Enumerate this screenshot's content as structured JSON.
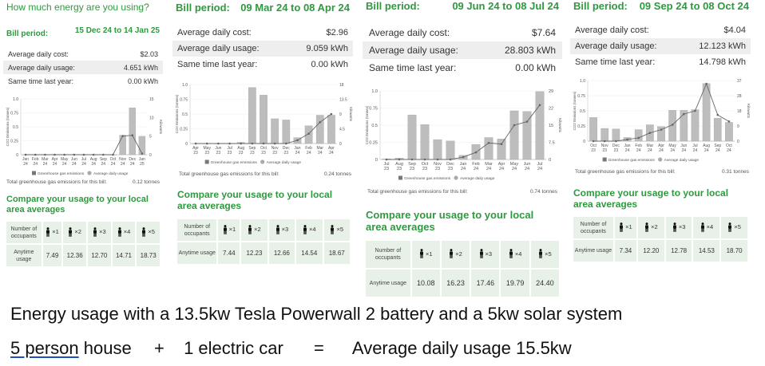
{
  "app_title": "How much energy are you using?",
  "colors": {
    "accent": "#2e9a3e",
    "bar": "#bdbdbd",
    "line": "#666666",
    "shade": "#eeeeee",
    "cell": "#e7f1e7"
  },
  "panels": [
    {
      "bill_label": "Bill period:",
      "bill_period": "15 Dec 24 to 14 Jan 25",
      "rows": [
        {
          "label": "Average daily cost:",
          "value": "$2.03"
        },
        {
          "label": "Average daily usage:",
          "value": "4.651 kWh"
        },
        {
          "label": "Same time last year:",
          "value": "0.00 kWh"
        }
      ],
      "total_label": "Total greenhouse gas emissions for this bill:",
      "total_value": "0.12 tonnes",
      "compare_title": "Compare your usage to your local area averages",
      "occupants_label": "Number of occupants",
      "usage_label": "Anytime usage",
      "occupants": [
        "×1",
        "×2",
        "×3",
        "×4",
        "×5"
      ],
      "averages": [
        "7.49",
        "12.36",
        "12.70",
        "14.71",
        "18.73"
      ]
    },
    {
      "bill_label": "Bill period:",
      "bill_period": "09 Mar 24 to 08 Apr 24",
      "rows": [
        {
          "label": "Average daily cost:",
          "value": "$2.96"
        },
        {
          "label": "Average daily usage:",
          "value": "9.059 kWh"
        },
        {
          "label": "Same time last year:",
          "value": "0.00 kWh"
        }
      ],
      "total_label": "Total greenhouse gas emissions for this bill:",
      "total_value": "0.24 tonnes",
      "compare_title": "Compare your usage to your local area averages",
      "occupants_label": "Number of occupants",
      "usage_label": "Anytime usage",
      "occupants": [
        "×1",
        "×2",
        "×3",
        "×4",
        "×5"
      ],
      "averages": [
        "7.44",
        "12.23",
        "12.66",
        "14.54",
        "18.67"
      ]
    },
    {
      "bill_label": "Bill period:",
      "bill_period": "09 Jun 24 to 08 Jul 24",
      "rows": [
        {
          "label": "Average daily cost:",
          "value": "$7.64"
        },
        {
          "label": "Average daily usage:",
          "value": "28.803 kWh"
        },
        {
          "label": "Same time last year:",
          "value": "0.00 kWh"
        }
      ],
      "total_label": "Total greenhouse gas emissions for this bill:",
      "total_value": "0.74 tonnes",
      "compare_title": "Compare your usage to your local area averages",
      "occupants_label": "Number of occupants",
      "usage_label": "Anytime usage",
      "occupants": [
        "×1",
        "×2",
        "×3",
        "×4",
        "×5"
      ],
      "averages": [
        "10.08",
        "16.23",
        "17.46",
        "19.79",
        "24.40"
      ]
    },
    {
      "bill_label": "Bill period:",
      "bill_period": "09 Sep 24 to 08 Oct 24",
      "rows": [
        {
          "label": "Average daily cost:",
          "value": "$4.04"
        },
        {
          "label": "Average daily usage:",
          "value": "12.123 kWh"
        },
        {
          "label": "Same time last year:",
          "value": "14.798 kWh"
        }
      ],
      "total_label": "Total greenhouse gas emissions for this bill:",
      "total_value": "0.31 tonnes",
      "compare_title": "Compare your usage to your local area averages",
      "occupants_label": "Number of occupants",
      "usage_label": "Anytime usage",
      "occupants": [
        "×1",
        "×2",
        "×3",
        "×4",
        "×5"
      ],
      "averages": [
        "7.34",
        "12.20",
        "12.78",
        "14.53",
        "18.70"
      ]
    }
  ],
  "chart_data": [
    {
      "type": "bar",
      "title": "",
      "ylabel": "CO2 Emissions (tonnes)",
      "y2label": "Kilowatts",
      "ylim": [
        0,
        1.0
      ],
      "y_ticks": [
        "0",
        "0.25",
        "0.5",
        "0.75",
        "1.0"
      ],
      "y2lim": [
        0,
        15
      ],
      "y2_ticks": [
        "0",
        "5",
        "10",
        "15"
      ],
      "categories": [
        "Jan 24",
        "Feb 24",
        "Mar 24",
        "Apr 24",
        "May 24",
        "Jun 24",
        "Jul 24",
        "Aug 24",
        "Sep 24",
        "Oct 24",
        "Nov 24",
        "Dec 24",
        "Jan 25"
      ],
      "series": [
        {
          "name": "Greenhouse gas emissions",
          "kind": "bar",
          "axis": "left",
          "values": [
            0,
            0,
            0,
            0,
            0,
            0,
            0,
            0,
            0,
            0,
            0.35,
            0.84,
            0.33
          ]
        },
        {
          "name": "Average daily usage",
          "kind": "line",
          "axis": "right",
          "values": [
            0,
            0,
            0,
            0,
            0,
            0,
            0,
            0,
            0,
            0,
            5.0,
            5.2,
            0.3
          ]
        }
      ]
    },
    {
      "type": "bar",
      "title": "",
      "ylabel": "CO2 Emissions (tonnes)",
      "y2label": "Kilowatts",
      "ylim": [
        0,
        1.0
      ],
      "y_ticks": [
        "0",
        "0.25",
        "0.5",
        "0.75",
        "1.0"
      ],
      "y2lim": [
        0,
        18
      ],
      "y2_ticks": [
        "0",
        "4.5",
        "9",
        "13.5",
        "18"
      ],
      "categories": [
        "Apr 23",
        "May 23",
        "Jun 23",
        "Jul 23",
        "Aug 23",
        "Sep 23",
        "Oct 23",
        "Nov 23",
        "Dec 23",
        "Jan 24",
        "Feb 24",
        "Mar 24",
        "Apr 24"
      ],
      "series": [
        {
          "name": "Greenhouse gas emissions",
          "kind": "bar",
          "axis": "left",
          "values": [
            0,
            0,
            0,
            0,
            0.02,
            0.95,
            0.82,
            0.42,
            0.4,
            0.1,
            0.3,
            0.48,
            0.48
          ]
        },
        {
          "name": "Average daily usage",
          "kind": "line",
          "axis": "right",
          "values": [
            0,
            0,
            0,
            0,
            0,
            0,
            0,
            0,
            0,
            1.0,
            3.0,
            6.5,
            9.0
          ]
        }
      ]
    },
    {
      "type": "bar",
      "title": "",
      "ylabel": "CO2 Emissions (tonnes)",
      "y2label": "Kilowatts",
      "ylim": [
        0,
        1.0
      ],
      "y_ticks": [
        "0",
        "0.25",
        "0.5",
        "0.75",
        "1.0"
      ],
      "y2lim": [
        0,
        29
      ],
      "y2_ticks": [
        "0",
        "7.5",
        "15",
        "22",
        "29"
      ],
      "categories": [
        "Jul 23",
        "Aug 23",
        "Sep 23",
        "Oct 23",
        "Nov 23",
        "Dec 23",
        "Jan 24",
        "Feb 24",
        "Mar 24",
        "Apr 24",
        "May 24",
        "Jun 24",
        "Jul 24"
      ],
      "series": [
        {
          "name": "Greenhouse gas emissions",
          "kind": "bar",
          "axis": "left",
          "values": [
            0.01,
            0.02,
            0.65,
            0.51,
            0.29,
            0.27,
            0.06,
            0.22,
            0.32,
            0.3,
            0.71,
            0.7,
            0.99
          ]
        },
        {
          "name": "Average daily usage",
          "kind": "line",
          "axis": "right",
          "values": [
            0,
            0,
            0,
            0,
            0,
            0,
            1.0,
            3.0,
            7.0,
            6.5,
            14.5,
            16.0,
            23.0
          ]
        }
      ]
    },
    {
      "type": "bar",
      "title": "",
      "ylabel": "CO2 Emissions (tonnes)",
      "y2label": "Kilowatts",
      "ylim": [
        0,
        1.0
      ],
      "y_ticks": [
        "0",
        "0.25",
        "0.5",
        "0.75",
        "1.0"
      ],
      "y2lim": [
        0,
        37
      ],
      "y2_ticks": [
        "0",
        "9",
        "18",
        "28",
        "37"
      ],
      "categories": [
        "Oct 23",
        "Nov 23",
        "Dec 23",
        "Jan 24",
        "Feb 24",
        "Mar 24",
        "Apr 24",
        "May 24",
        "Jun 24",
        "Jul 24",
        "Aug 24",
        "Sep 24",
        "Oct 24"
      ],
      "series": [
        {
          "name": "Greenhouse gas emissions",
          "kind": "bar",
          "axis": "left",
          "values": [
            0.39,
            0.21,
            0.2,
            0.06,
            0.19,
            0.27,
            0.24,
            0.51,
            0.51,
            0.52,
            0.95,
            0.38,
            0.31
          ]
        },
        {
          "name": "Average daily usage",
          "kind": "line",
          "axis": "right",
          "values": [
            0,
            0,
            0,
            1.0,
            2.0,
            5.0,
            7.0,
            10.0,
            16.5,
            18.5,
            35.0,
            16.0,
            12.0
          ]
        }
      ]
    }
  ],
  "legend": {
    "bar": "Greenhouse gas emissions",
    "line": "Average daily usage"
  },
  "caption_line1": "Energy usage with a 13.5kw Tesla Powerwall 2 battery and a 5kw solar system",
  "caption_line2": {
    "part1": "5 person",
    "part2": "house",
    "op1": "+",
    "part3": "1 electric car",
    "op2": "=",
    "part4": "Average daily usage 15.5kw"
  }
}
